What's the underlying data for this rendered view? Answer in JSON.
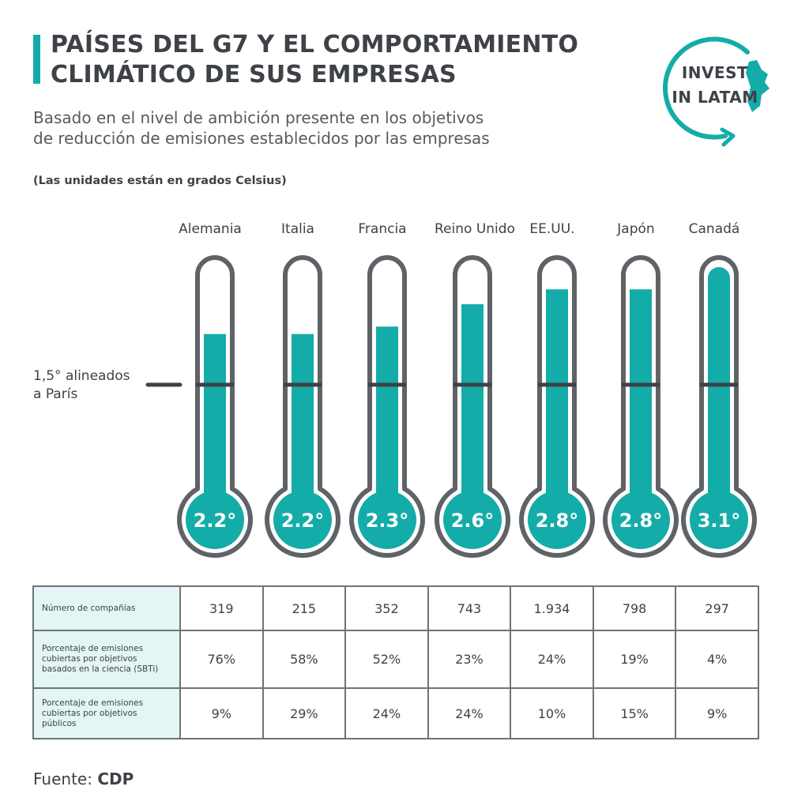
{
  "title": "PAÍSES DEL G7 Y EL COMPORTAMIENTO CLIMÁTICO DE SUS EMPRESAS",
  "subtitle_line1": "Basado en el nivel de ambición presente en los objetivos",
  "subtitle_line2": "de reducción de emisiones establecidos por las empresas",
  "units_note": "(Las unidades están en grados Celsius)",
  "logo": {
    "line1": "INVEST",
    "line2": "IN LATAM",
    "accent": "#14aca9"
  },
  "colors": {
    "accent": "#14aca9",
    "tube_border": "#5f6368",
    "text": "#3e4247"
  },
  "chart_data": {
    "type": "bar",
    "categories": [
      "Alemania",
      "Italia",
      "Francia",
      "Reino Unido",
      "EE.UU.",
      "Japón",
      "Canadá"
    ],
    "values": [
      2.2,
      2.2,
      2.3,
      2.6,
      2.8,
      2.8,
      3.1
    ],
    "value_labels": [
      "2.2°",
      "2.2°",
      "2.3°",
      "2.6°",
      "2.8°",
      "2.8°",
      "3.1°"
    ],
    "reference_line": {
      "value": 1.5,
      "label_line1": "1,5° alineados",
      "label_line2": "a París"
    },
    "ylim": [
      0,
      3.1
    ]
  },
  "table": {
    "rows": [
      {
        "label": "Número de compañías",
        "cells": [
          "319",
          "215",
          "352",
          "743",
          "1.934",
          "798",
          "297"
        ]
      },
      {
        "label": "Porcentaje de emisiones cubiertas por objetivos basados en la ciencia (SBTi)",
        "cells": [
          "76%",
          "58%",
          "52%",
          "23%",
          "24%",
          "19%",
          "4%"
        ]
      },
      {
        "label": "Porcentaje de emisiones cubiertas por objetivos públicos",
        "cells": [
          "9%",
          "29%",
          "24%",
          "24%",
          "10%",
          "15%",
          "9%"
        ]
      }
    ]
  },
  "source": {
    "label": "Fuente:",
    "name": "CDP"
  }
}
